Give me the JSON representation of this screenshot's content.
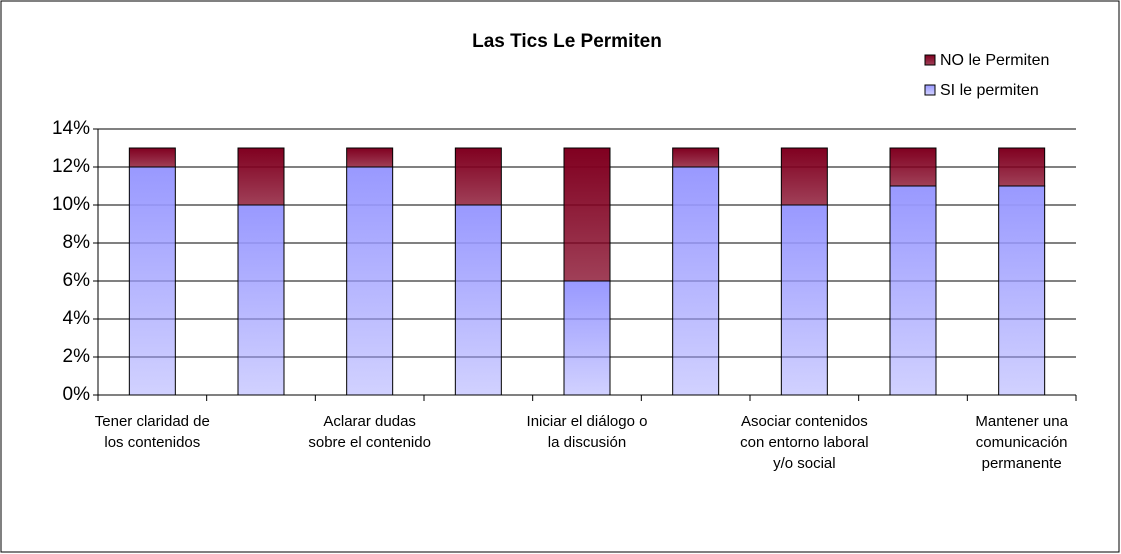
{
  "chart_data": {
    "type": "stacked-bar",
    "title": "Las Tics Le Permiten",
    "categories": [
      "Tener claridad de los contenidos",
      null,
      "Aclarar dudas sobre el contenido",
      null,
      "Iniciar el diálogo o la discusión",
      null,
      "Asociar contenidos con entorno laboral y/o social",
      null,
      "Mantener una comunicación permanente"
    ],
    "series": [
      {
        "name": "SI le permiten",
        "color": "#9999ff",
        "values": [
          12,
          10,
          12,
          10,
          6,
          12,
          10,
          11,
          11
        ]
      },
      {
        "name": "NO le Permiten",
        "color": "#800020",
        "values": [
          1,
          3,
          1,
          3,
          7,
          1,
          3,
          2,
          2
        ]
      }
    ],
    "ylim": [
      0,
      14
    ],
    "yticks": [
      {
        "value": 0,
        "label": "0%"
      },
      {
        "value": 2,
        "label": "2%"
      },
      {
        "value": 4,
        "label": "4%"
      },
      {
        "value": 6,
        "label": "6%"
      },
      {
        "value": 8,
        "label": "8%"
      },
      {
        "value": 10,
        "label": "10%"
      },
      {
        "value": 12,
        "label": "12%"
      },
      {
        "value": 14,
        "label": "14%"
      }
    ],
    "grid": true,
    "legend": "top-right"
  }
}
